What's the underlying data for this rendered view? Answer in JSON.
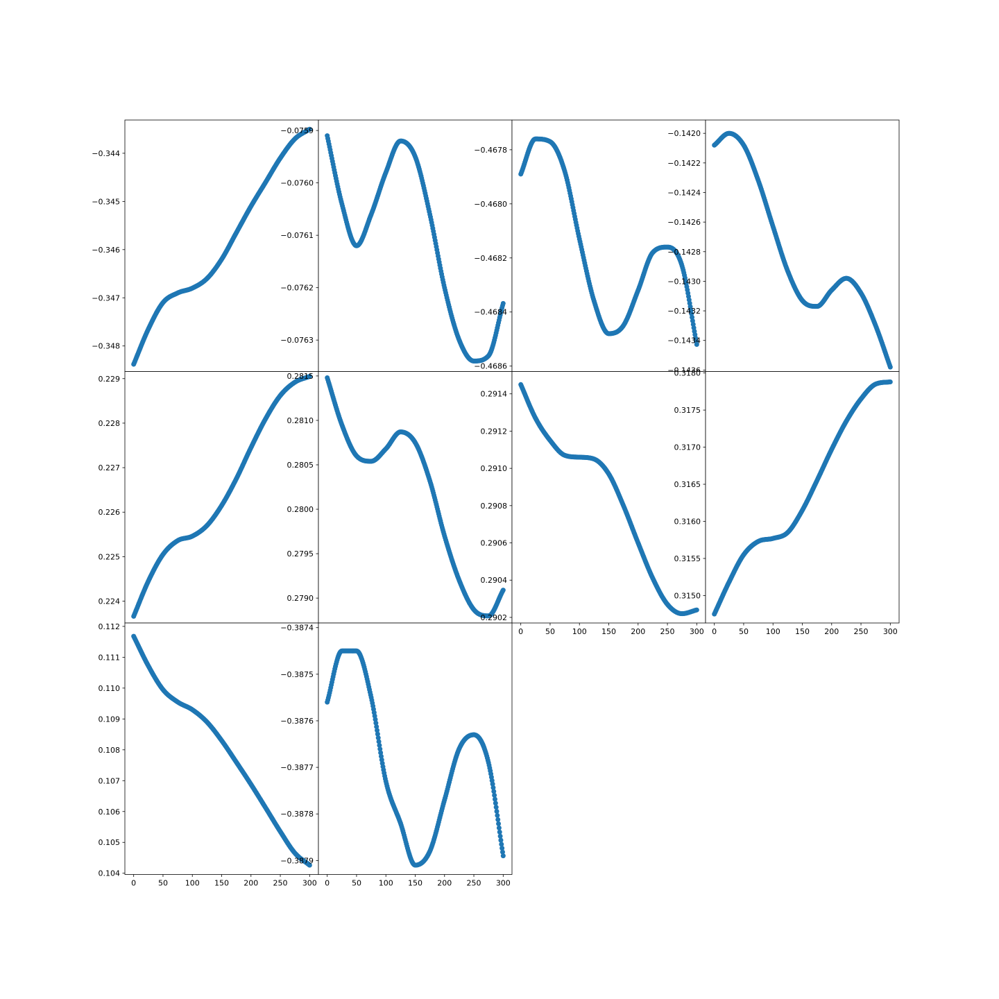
{
  "figure": {
    "grid_rows": 3,
    "grid_cols": 4,
    "marker_color": "#1f77b4",
    "grid": false,
    "legend": false
  },
  "chart_data": [
    {
      "type": "scatter",
      "title": "",
      "xlabel": "",
      "ylabel": "",
      "xlim": [
        -15,
        315
      ],
      "ylim": [
        -0.34853,
        -0.34331
      ],
      "x_ticks": [
        0,
        50,
        100,
        150,
        200,
        250,
        300
      ],
      "x_tick_labels": [
        "0",
        "50",
        "100",
        "150",
        "200",
        "250",
        "300"
      ],
      "y_ticks": [
        -0.344,
        -0.345,
        -0.346,
        -0.347,
        -0.348
      ],
      "y_tick_labels": [
        "−0.344",
        "−0.345",
        "−0.346",
        "−0.347",
        "−0.348"
      ],
      "series": [
        {
          "x_start": 0,
          "x_step": 1,
          "x_count": 301,
          "anchors": [
            [
              0,
              -0.34838
            ],
            [
              25,
              -0.34765
            ],
            [
              50,
              -0.3471
            ],
            [
              75,
              -0.3469
            ],
            [
              100,
              -0.3468
            ],
            [
              125,
              -0.3466
            ],
            [
              150,
              -0.3462
            ],
            [
              175,
              -0.34565
            ],
            [
              200,
              -0.3451
            ],
            [
              225,
              -0.3446
            ],
            [
              250,
              -0.3441
            ],
            [
              275,
              -0.3437
            ],
            [
              300,
              -0.3435
            ]
          ]
        }
      ]
    },
    {
      "type": "scatter",
      "title": "",
      "xlabel": "",
      "ylabel": "",
      "xlim": [
        -15,
        315
      ],
      "ylim": [
        -0.07636,
        -0.07588
      ],
      "x_ticks": [
        0,
        50,
        100,
        150,
        200,
        250,
        300
      ],
      "x_tick_labels": [
        "0",
        "50",
        "100",
        "150",
        "200",
        "250",
        "300"
      ],
      "y_ticks": [
        -0.0759,
        -0.076,
        -0.0761,
        -0.0762,
        -0.0763
      ],
      "y_tick_labels": [
        "−0.0759",
        "−0.0760",
        "−0.0761",
        "−0.0762",
        "−0.0763"
      ],
      "series": [
        {
          "x_start": 0,
          "x_step": 1,
          "x_count": 301,
          "anchors": [
            [
              0,
              -0.07591
            ],
            [
              25,
              -0.07604
            ],
            [
              50,
              -0.07612
            ],
            [
              75,
              -0.07606
            ],
            [
              100,
              -0.07598
            ],
            [
              125,
              -0.07592
            ],
            [
              150,
              -0.07595
            ],
            [
              175,
              -0.07606
            ],
            [
              200,
              -0.0762
            ],
            [
              225,
              -0.0763
            ],
            [
              250,
              -0.07634
            ],
            [
              275,
              -0.07633
            ],
            [
              300,
              -0.07623
            ]
          ]
        }
      ]
    },
    {
      "type": "scatter",
      "title": "",
      "xlabel": "",
      "ylabel": "",
      "xlim": [
        -15,
        315
      ],
      "ylim": [
        -0.46862,
        -0.46769
      ],
      "x_ticks": [
        0,
        50,
        100,
        150,
        200,
        250,
        300
      ],
      "x_tick_labels": [
        "0",
        "50",
        "100",
        "150",
        "200",
        "250",
        "300"
      ],
      "y_ticks": [
        -0.4678,
        -0.468,
        -0.4682,
        -0.4684,
        -0.4686
      ],
      "y_tick_labels": [
        "−0.4678",
        "−0.4680",
        "−0.4682",
        "−0.4684",
        "−0.4686"
      ],
      "series": [
        {
          "x_start": 0,
          "x_step": 1,
          "x_count": 301,
          "anchors": [
            [
              0,
              -0.46789
            ],
            [
              25,
              -0.46776
            ],
            [
              50,
              -0.46777
            ],
            [
              75,
              -0.46788
            ],
            [
              100,
              -0.46813
            ],
            [
              125,
              -0.46836
            ],
            [
              150,
              -0.46848
            ],
            [
              175,
              -0.46845
            ],
            [
              200,
              -0.46832
            ],
            [
              225,
              -0.46818
            ],
            [
              250,
              -0.46816
            ],
            [
              275,
              -0.46823
            ],
            [
              300,
              -0.46852
            ]
          ]
        }
      ]
    },
    {
      "type": "scatter",
      "title": "",
      "xlabel": "",
      "ylabel": "",
      "xlim": [
        -15,
        315
      ],
      "ylim": [
        -0.14361,
        -0.14191
      ],
      "x_ticks": [
        0,
        50,
        100,
        150,
        200,
        250,
        300
      ],
      "x_tick_labels": [
        "0",
        "50",
        "100",
        "150",
        "200",
        "250",
        "300"
      ],
      "y_ticks": [
        -0.142,
        -0.1422,
        -0.1424,
        -0.1426,
        -0.1428,
        -0.143,
        -0.1432,
        -0.1434,
        -0.1436
      ],
      "y_tick_labels": [
        "−0.1420",
        "−0.1422",
        "−0.1424",
        "−0.1426",
        "−0.1428",
        "−0.1430",
        "−0.1432",
        "−0.1434",
        "−0.1436"
      ],
      "series": [
        {
          "x_start": 0,
          "x_step": 1,
          "x_count": 301,
          "anchors": [
            [
              0,
              -0.14208
            ],
            [
              25,
              -0.142
            ],
            [
              50,
              -0.14208
            ],
            [
              75,
              -0.14232
            ],
            [
              100,
              -0.14263
            ],
            [
              125,
              -0.14293
            ],
            [
              150,
              -0.14313
            ],
            [
              175,
              -0.14317
            ],
            [
              200,
              -0.14306
            ],
            [
              225,
              -0.14298
            ],
            [
              250,
              -0.14308
            ],
            [
              275,
              -0.1433
            ],
            [
              300,
              -0.14358
            ]
          ]
        }
      ]
    },
    {
      "type": "scatter",
      "title": "",
      "xlabel": "",
      "ylabel": "",
      "xlim": [
        -15,
        315
      ],
      "ylim": [
        0.22351,
        0.22916
      ],
      "x_ticks": [
        0,
        50,
        100,
        150,
        200,
        250,
        300
      ],
      "x_tick_labels": [
        "0",
        "50",
        "100",
        "150",
        "200",
        "250",
        "300"
      ],
      "y_ticks": [
        0.229,
        0.228,
        0.227,
        0.226,
        0.225,
        0.224
      ],
      "y_tick_labels": [
        "0.229",
        "0.228",
        "0.227",
        "0.226",
        "0.225",
        "0.224"
      ],
      "series": [
        {
          "x_start": 0,
          "x_step": 1,
          "x_count": 301,
          "anchors": [
            [
              0,
              0.22366
            ],
            [
              25,
              0.22445
            ],
            [
              50,
              0.22505
            ],
            [
              75,
              0.22536
            ],
            [
              100,
              0.22546
            ],
            [
              125,
              0.2257
            ],
            [
              150,
              0.22615
            ],
            [
              175,
              0.22675
            ],
            [
              200,
              0.22745
            ],
            [
              225,
              0.2281
            ],
            [
              250,
              0.22862
            ],
            [
              275,
              0.22892
            ],
            [
              300,
              0.22905
            ]
          ]
        }
      ]
    },
    {
      "type": "scatter",
      "title": "",
      "xlabel": "",
      "ylabel": "",
      "xlim": [
        -15,
        315
      ],
      "ylim": [
        0.27872,
        0.28155
      ],
      "x_ticks": [
        0,
        50,
        100,
        150,
        200,
        250,
        300
      ],
      "x_tick_labels": [
        "0",
        "50",
        "100",
        "150",
        "200",
        "250",
        "300"
      ],
      "y_ticks": [
        0.2815,
        0.281,
        0.2805,
        0.28,
        0.2795,
        0.279
      ],
      "y_tick_labels": [
        "0.2815",
        "0.2810",
        "0.2805",
        "0.2800",
        "0.2795",
        "0.2790"
      ],
      "series": [
        {
          "x_start": 0,
          "x_step": 1,
          "x_count": 301,
          "anchors": [
            [
              0,
              0.28148
            ],
            [
              25,
              0.28095
            ],
            [
              50,
              0.2806
            ],
            [
              75,
              0.28054
            ],
            [
              100,
              0.28068
            ],
            [
              125,
              0.28087
            ],
            [
              150,
              0.28075
            ],
            [
              175,
              0.28032
            ],
            [
              200,
              0.2797
            ],
            [
              225,
              0.2792
            ],
            [
              250,
              0.27887
            ],
            [
              275,
              0.2788
            ],
            [
              300,
              0.27909
            ]
          ]
        }
      ]
    },
    {
      "type": "scatter",
      "title": "",
      "xlabel": "",
      "ylabel": "",
      "xlim": [
        -15,
        315
      ],
      "ylim": [
        0.29017,
        0.29152
      ],
      "x_ticks": [
        0,
        50,
        100,
        150,
        200,
        250,
        300
      ],
      "x_tick_labels": [
        "0",
        "50",
        "100",
        "150",
        "200",
        "250",
        "300"
      ],
      "y_ticks": [
        0.2914,
        0.2912,
        0.291,
        0.2908,
        0.2906,
        0.2904,
        0.2902
      ],
      "y_tick_labels": [
        "0.2914",
        "0.2912",
        "0.2910",
        "0.2908",
        "0.2906",
        "0.2904",
        "0.2902"
      ],
      "series": [
        {
          "x_start": 0,
          "x_step": 1,
          "x_count": 301,
          "anchors": [
            [
              0,
              0.29145
            ],
            [
              25,
              0.29127
            ],
            [
              50,
              0.29115
            ],
            [
              75,
              0.29107
            ],
            [
              100,
              0.29106
            ],
            [
              125,
              0.29105
            ],
            [
              150,
              0.29097
            ],
            [
              175,
              0.2908
            ],
            [
              200,
              0.2906
            ],
            [
              225,
              0.29041
            ],
            [
              250,
              0.29027
            ],
            [
              275,
              0.29022
            ],
            [
              300,
              0.29024
            ]
          ]
        }
      ]
    },
    {
      "type": "scatter",
      "title": "",
      "xlabel": "",
      "ylabel": "",
      "xlim": [
        -15,
        315
      ],
      "ylim": [
        0.31463,
        0.31802
      ],
      "x_ticks": [
        0,
        50,
        100,
        150,
        200,
        250,
        300
      ],
      "x_tick_labels": [
        "0",
        "50",
        "100",
        "150",
        "200",
        "250",
        "300"
      ],
      "y_ticks": [
        0.318,
        0.3175,
        0.317,
        0.3165,
        0.316,
        0.3155,
        0.315
      ],
      "y_tick_labels": [
        "0.3180",
        "0.3175",
        "0.3170",
        "0.3165",
        "0.3160",
        "0.3155",
        "0.3150"
      ],
      "series": [
        {
          "x_start": 0,
          "x_step": 1,
          "x_count": 301,
          "anchors": [
            [
              0,
              0.31475
            ],
            [
              25,
              0.31518
            ],
            [
              50,
              0.31555
            ],
            [
              75,
              0.31573
            ],
            [
              100,
              0.31577
            ],
            [
              125,
              0.31585
            ],
            [
              150,
              0.31615
            ],
            [
              175,
              0.31655
            ],
            [
              200,
              0.31697
            ],
            [
              225,
              0.31735
            ],
            [
              250,
              0.31765
            ],
            [
              275,
              0.31785
            ],
            [
              300,
              0.31788
            ]
          ]
        }
      ]
    },
    {
      "type": "scatter",
      "title": "",
      "xlabel": "",
      "ylabel": "",
      "xlim": [
        -15,
        315
      ],
      "ylim": [
        0.10396,
        0.11211
      ],
      "x_ticks": [
        0,
        50,
        100,
        150,
        200,
        250,
        300
      ],
      "x_tick_labels": [
        "0",
        "50",
        "100",
        "150",
        "200",
        "250",
        "300"
      ],
      "y_ticks": [
        0.112,
        0.111,
        0.11,
        0.109,
        0.108,
        0.107,
        0.106,
        0.105,
        0.104
      ],
      "y_tick_labels": [
        "0.112",
        "0.111",
        "0.110",
        "0.109",
        "0.108",
        "0.107",
        "0.106",
        "0.105",
        "0.104"
      ],
      "series": [
        {
          "x_start": 0,
          "x_step": 1,
          "x_count": 301,
          "anchors": [
            [
              0,
              0.11168
            ],
            [
              25,
              0.11072
            ],
            [
              50,
              0.10995
            ],
            [
              75,
              0.10955
            ],
            [
              100,
              0.1093
            ],
            [
              125,
              0.1089
            ],
            [
              150,
              0.1083
            ],
            [
              175,
              0.1076
            ],
            [
              200,
              0.10688
            ],
            [
              225,
              0.10612
            ],
            [
              250,
              0.10535
            ],
            [
              275,
              0.10465
            ],
            [
              300,
              0.10426
            ]
          ]
        }
      ]
    },
    {
      "type": "scatter",
      "title": "",
      "xlabel": "",
      "ylabel": "",
      "xlim": [
        -15,
        315
      ],
      "ylim": [
        -0.38793,
        -0.38739
      ],
      "x_ticks": [
        0,
        50,
        100,
        150,
        200,
        250,
        300
      ],
      "x_tick_labels": [
        "0",
        "50",
        "100",
        "150",
        "200",
        "250",
        "300"
      ],
      "y_ticks": [
        -0.3874,
        -0.3875,
        -0.3876,
        -0.3877,
        -0.3878,
        -0.3879
      ],
      "y_tick_labels": [
        "−0.3874",
        "−0.3875",
        "−0.3876",
        "−0.3877",
        "−0.3878",
        "−0.3879"
      ],
      "series": [
        {
          "x_start": 0,
          "x_step": 1,
          "x_count": 301,
          "anchors": [
            [
              0,
              -0.38756
            ],
            [
              25,
              -0.38745
            ],
            [
              50,
              -0.38745
            ],
            [
              75,
              -0.38755
            ],
            [
              100,
              -0.38773
            ],
            [
              125,
              -0.38782
            ],
            [
              150,
              -0.38791
            ],
            [
              175,
              -0.38788
            ],
            [
              200,
              -0.38777
            ],
            [
              225,
              -0.38766
            ],
            [
              250,
              -0.38763
            ],
            [
              275,
              -0.38769
            ],
            [
              300,
              -0.38789
            ]
          ]
        }
      ]
    }
  ]
}
